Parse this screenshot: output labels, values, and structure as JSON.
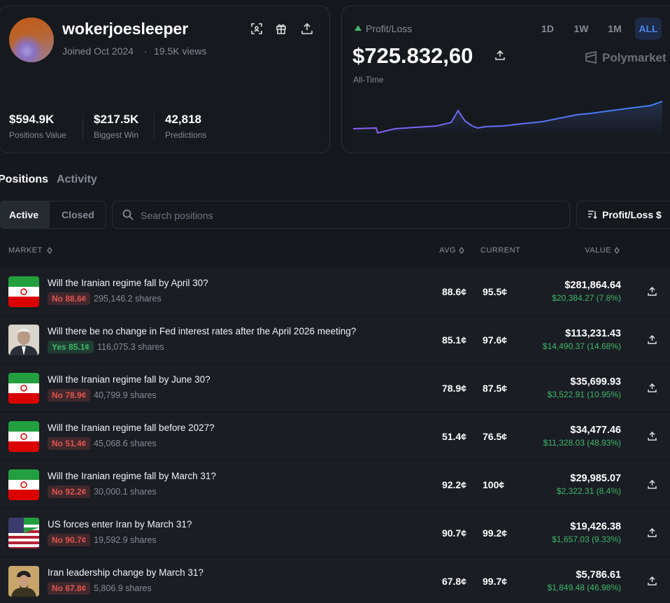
{
  "profile": {
    "username": "wokerjoesleeper",
    "joined": "Joined Oct 2024",
    "separator": "·",
    "views": "19.5K views",
    "stats": [
      {
        "value": "$594.9K",
        "label": "Positions Value"
      },
      {
        "value": "$217.5K",
        "label": "Biggest Win"
      },
      {
        "value": "42,818",
        "label": "Predictions"
      }
    ]
  },
  "pnl": {
    "label": "Profit/Loss",
    "value": "$725.832,60",
    "period": "All-Time",
    "ranges": [
      "1D",
      "1W",
      "1M",
      "ALL"
    ],
    "active_range": 3,
    "brand": "Polymarket"
  },
  "tabs": [
    "Positions",
    "Activity"
  ],
  "filters": {
    "toggle": [
      "Active",
      "Closed"
    ],
    "search_placeholder": "Search positions",
    "sort": "Profit/Loss $"
  },
  "table": {
    "headers": [
      "MARKET",
      "AVG",
      "CURRENT",
      "VALUE"
    ],
    "rows": [
      {
        "market": "Will the Iranian regime fall by April 30?",
        "outcome": "No 88.6¢",
        "outcome_color": "#e0534f",
        "shares": "295,146.2 shares",
        "avg": "88.6¢",
        "current": "95.5¢",
        "value": "$281,864.64",
        "pnl": "$20,384.27 (7.8%)"
      },
      {
        "market": "Will there be no change in Fed interest rates after the April 2026 meeting?",
        "outcome": "Yes 85.1¢",
        "outcome_color": "#3fb76a",
        "shares": "116,075.3 shares",
        "avg": "85.1¢",
        "current": "97.6¢",
        "value": "$113,231.43",
        "pnl": "$14,490.37 (14.68%)"
      },
      {
        "market": "Will the Iranian regime fall by June 30?",
        "outcome": "No 78.9¢",
        "outcome_color": "#e0534f",
        "shares": "40,799.9 shares",
        "avg": "78.9¢",
        "current": "87.5¢",
        "value": "$35,699.93",
        "pnl": "$3,522.91 (10.95%)"
      },
      {
        "market": "Will the Iranian regime fall before 2027?",
        "outcome": "No 51.4¢",
        "outcome_color": "#e0534f",
        "shares": "45,068.6 shares",
        "avg": "51.4¢",
        "current": "76.5¢",
        "value": "$34,477.46",
        "pnl": "$11,328.03 (48.93%)"
      },
      {
        "market": "Will the Iranian regime fall by March 31?",
        "outcome": "No 92.2¢",
        "outcome_color": "#e0534f",
        "shares": "30,000.1 shares",
        "avg": "92.2¢",
        "current": "100¢",
        "value": "$29,985.07",
        "pnl": "$2,322.31 (8.4%)"
      },
      {
        "market": "US forces enter Iran by March 31?",
        "outcome": "No 90.7¢",
        "outcome_color": "#e0534f",
        "shares": "19,592.9 shares",
        "avg": "90.7¢",
        "current": "99.2¢",
        "value": "$19,426.38",
        "pnl": "$1,657.03 (9.33%)"
      },
      {
        "market": "Iran leadership change by March 31?",
        "outcome": "No 67.8¢",
        "outcome_color": "#e0534f",
        "shares": "5,806.9 shares",
        "avg": "67.8¢",
        "current": "99.7¢",
        "value": "$5,786.61",
        "pnl": "$1,849.48 (46.98%)"
      }
    ]
  }
}
